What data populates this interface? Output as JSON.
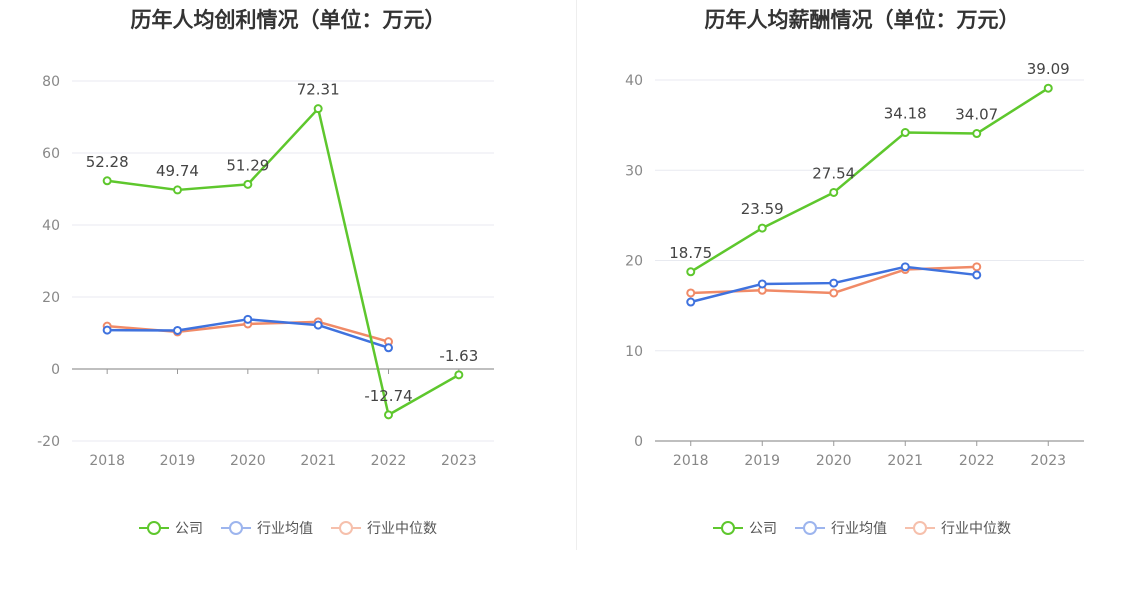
{
  "colors": {
    "company": "#5ec72d",
    "avg": "#3f72de",
    "median": "#f08a67",
    "axis": "#888888",
    "grid": "#e8eaf0",
    "label": "#444444"
  },
  "chart_data": [
    {
      "type": "line",
      "title": "历年人均创利情况（单位：万元）",
      "categories": [
        "2018",
        "2019",
        "2020",
        "2021",
        "2022",
        "2023"
      ],
      "ylim": [
        -20,
        80
      ],
      "yticks": [
        "80",
        "60",
        "40",
        "20",
        "0",
        "-20"
      ],
      "ytick_values": [
        80,
        60,
        40,
        20,
        0,
        -20
      ],
      "series": [
        {
          "name": "公司",
          "key": "company",
          "values": [
            52.28,
            49.74,
            51.29,
            72.31,
            -12.74,
            -1.63
          ],
          "labels": [
            "52.28",
            "49.74",
            "51.29",
            "72.31",
            "-12.74",
            "-1.63"
          ]
        },
        {
          "name": "行业均值",
          "key": "avg",
          "values": [
            10.8,
            10.7,
            13.8,
            12.2,
            5.9,
            null
          ]
        },
        {
          "name": "行业中位数",
          "key": "median",
          "values": [
            11.9,
            10.3,
            12.5,
            13.1,
            7.6,
            null
          ]
        }
      ],
      "legend": [
        "公司",
        "行业均值",
        "行业中位数"
      ]
    },
    {
      "type": "line",
      "title": "历年人均薪酬情况（单位：万元）",
      "categories": [
        "2018",
        "2019",
        "2020",
        "2021",
        "2022",
        "2023"
      ],
      "ylim": [
        0,
        40
      ],
      "yticks": [
        "40",
        "30",
        "20",
        "10",
        "0"
      ],
      "ytick_values": [
        40,
        30,
        20,
        10,
        0
      ],
      "series": [
        {
          "name": "公司",
          "key": "company",
          "values": [
            18.75,
            23.59,
            27.54,
            34.18,
            34.07,
            39.09
          ],
          "labels": [
            "18.75",
            "23.59",
            "27.54",
            "34.18",
            "34.07",
            "39.09"
          ]
        },
        {
          "name": "行业均值",
          "key": "avg",
          "values": [
            15.4,
            17.4,
            17.5,
            19.3,
            18.4,
            null
          ]
        },
        {
          "name": "行业中位数",
          "key": "median",
          "values": [
            16.4,
            16.7,
            16.4,
            19.0,
            19.3,
            null
          ]
        }
      ],
      "legend": [
        "公司",
        "行业均值",
        "行业中位数"
      ]
    }
  ]
}
